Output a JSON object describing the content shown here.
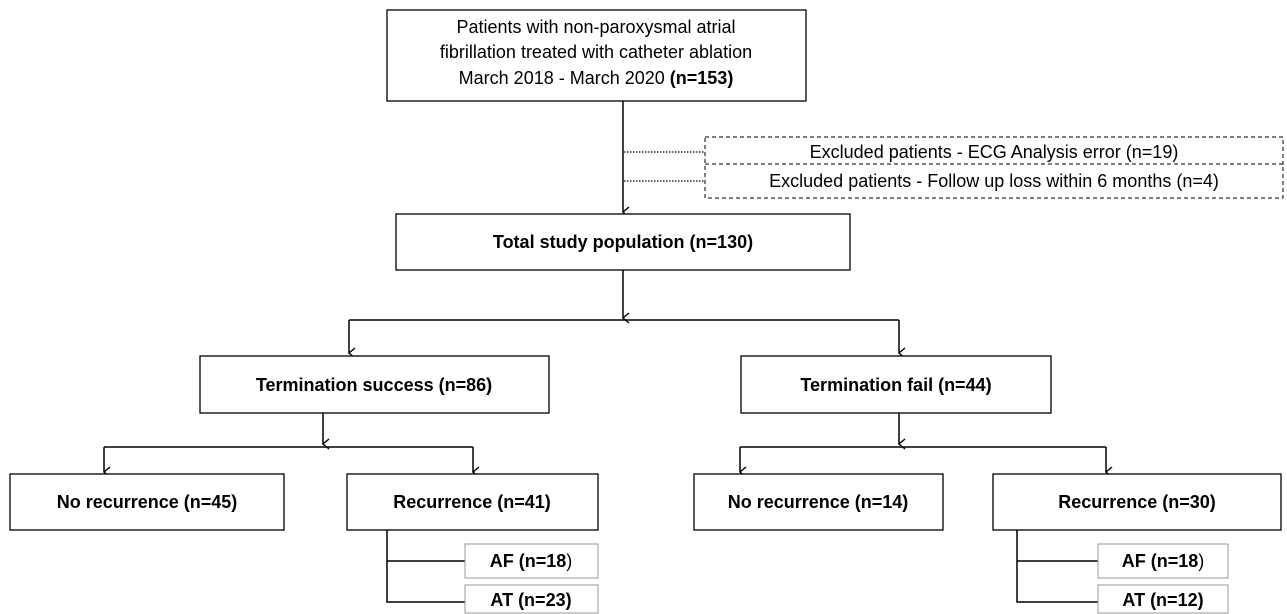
{
  "nodes": [
    {
      "lines": [
        "Patients with non-paroxysmal atrial",
        "fibrillation treated with catheter ablation",
        "March 2018 - March 2020"
      ],
      "bold": "(n=153)"
    },
    {
      "label": "Excluded patients - ECG Analysis error (n=19)"
    },
    {
      "label": "Excluded patients - Follow up loss within 6 months (n=4)"
    },
    {
      "label": "Total study population (n=130)"
    },
    {
      "label": "Termination success (n=86)"
    },
    {
      "label": "Termination fail (n=44)"
    },
    {
      "label": "No recurrence (n=45)"
    },
    {
      "label": "Recurrence (n=41)"
    },
    {
      "label": "No recurrence (n=14)"
    },
    {
      "label": "Recurrence (n=30)"
    },
    {
      "label": "AF (n=18",
      "suffix": ")"
    },
    {
      "label": "AT (n=23)"
    },
    {
      "label": "AF (n=18",
      "suffix": ")"
    },
    {
      "label": "AT (n=12)"
    }
  ]
}
